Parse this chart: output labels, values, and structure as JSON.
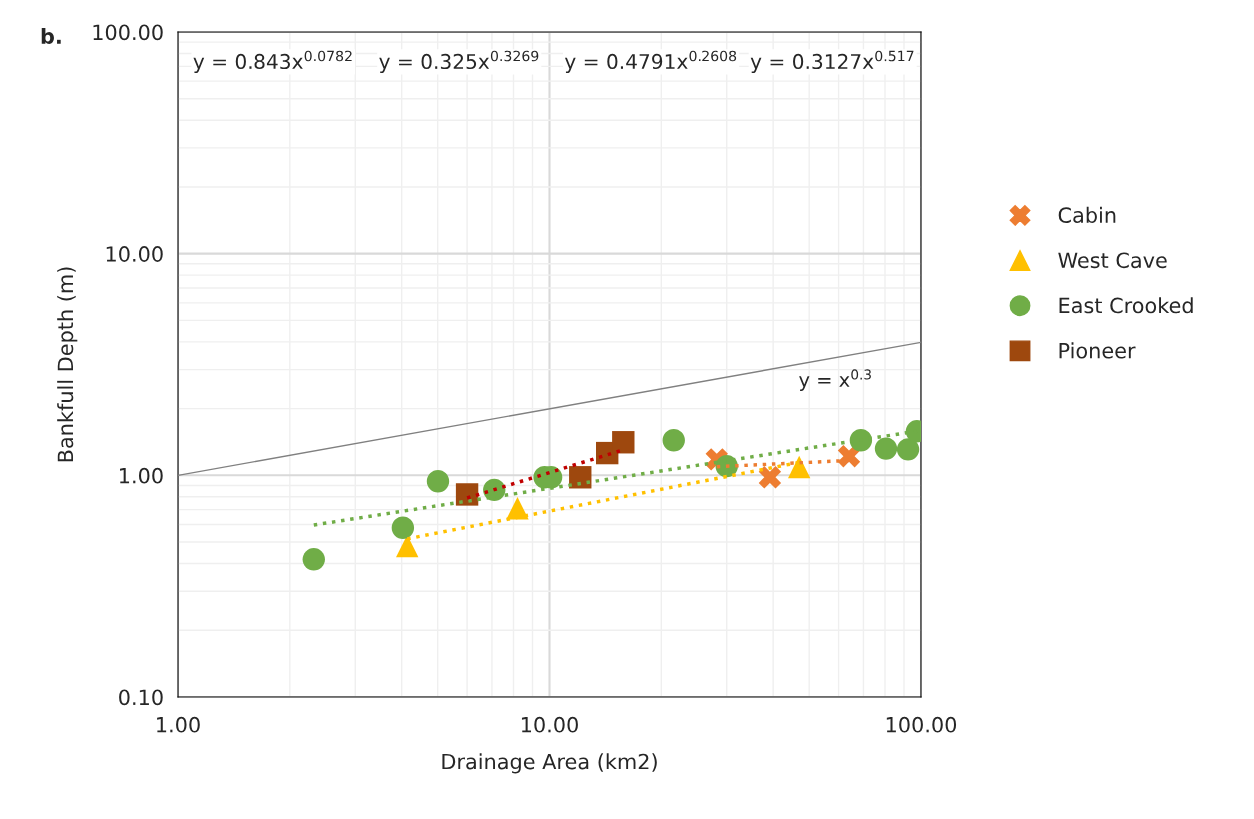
{
  "chart_data": {
    "type": "scatter",
    "xlabel": "Drainage Area (km2)",
    "ylabel": "Bankfull Depth (m)",
    "log": "xy",
    "grid": true,
    "legend": "right",
    "xlim": [
      1,
      100
    ],
    "xticks": [
      {
        "value": 1,
        "label": "1.00"
      },
      {
        "value": 10,
        "label": "10.00"
      },
      {
        "value": 100,
        "label": "100.00"
      }
    ],
    "ylim": [
      0.1,
      100
    ],
    "yticks": [
      {
        "value": 0.1,
        "label": "0.10"
      },
      {
        "value": 1,
        "label": "1.00"
      },
      {
        "value": 10,
        "label": "10.00"
      },
      {
        "value": 100,
        "label": "100.00"
      }
    ],
    "series": [
      {
        "name": "Cabin",
        "color": "#ed7d31",
        "marker": "cross",
        "x": [
          28.2,
          39.2,
          64.0
        ],
        "values": [
          1.18,
          0.98,
          1.22
        ]
      },
      {
        "name": "West Cave",
        "color": "#ffc000",
        "marker": "triangle",
        "x": [
          4.14,
          8.2,
          47.0
        ],
        "values": [
          0.48,
          0.71,
          1.09
        ]
      },
      {
        "name": "East Crooked",
        "color": "#70ad47",
        "marker": "circle",
        "x": [
          2.32,
          4.03,
          5.01,
          7.1,
          9.7,
          10.1,
          21.6,
          30.0,
          68.9,
          80.5,
          92.3,
          97.5
        ],
        "values": [
          0.418,
          0.58,
          0.94,
          0.86,
          0.98,
          0.98,
          1.44,
          1.1,
          1.44,
          1.32,
          1.31,
          1.58
        ]
      },
      {
        "name": "Pioneer",
        "color": "#9e480e",
        "marker": "square",
        "x": [
          6.0,
          12.1,
          14.3,
          15.8
        ],
        "values": [
          0.82,
          0.98,
          1.26,
          1.41
        ]
      },
      {
        "type": "line",
        "color": "#ed7d31",
        "line_style": "dotted",
        "x": [
          28.2,
          64.0
        ],
        "values": [
          1.094,
          1.167
        ]
      },
      {
        "type": "line",
        "color": "#ffc000",
        "line_style": "dotted",
        "x": [
          4.14,
          47.0
        ],
        "values": [
          0.517,
          1.144
        ]
      },
      {
        "type": "line",
        "color": "#70ad47",
        "line_style": "dotted",
        "x": [
          2.32,
          97.5
        ],
        "values": [
          0.597,
          1.582
        ]
      },
      {
        "type": "line",
        "color": "#c00000",
        "line_style": "dotted",
        "x": [
          6.0,
          15.8
        ],
        "values": [
          0.79,
          1.303
        ]
      },
      {
        "type": "line",
        "color": "#808080",
        "line_style": "solid",
        "x": [
          1,
          100
        ],
        "values": [
          1,
          3.98
        ]
      }
    ],
    "annotations": [
      "b.",
      "y = 0.843x$^{0.0782}$",
      "y = 0.325x$^{0.3269}$",
      "y = 0.4791x$^{0.2608}$",
      "y = 0.3127x$^{0.517}$",
      "y = x$^{0.3}$"
    ]
  }
}
